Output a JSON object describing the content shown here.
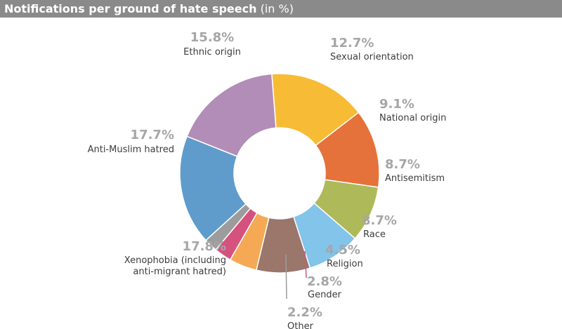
{
  "chart_data": {
    "type": "pie",
    "title": "Notifications per ground of hate speech",
    "subtitle": "(in %)",
    "slices": [
      {
        "label": "Ethnic origin",
        "value": 15.8,
        "value_label": "15.8%",
        "color": "#f8bb35"
      },
      {
        "label": "Sexual orientation",
        "value": 12.7,
        "value_label": "12.7%",
        "color": "#e5723a"
      },
      {
        "label": "National origin",
        "value": 9.1,
        "value_label": "9.1%",
        "color": "#aeb95a"
      },
      {
        "label": "Antisemitism",
        "value": 8.7,
        "value_label": "8.7%",
        "color": "#82c4ea"
      },
      {
        "label": "Race",
        "value": 8.7,
        "value_label": "8.7%",
        "color": "#9b766b"
      },
      {
        "label": "Religion",
        "value": 4.5,
        "value_label": "4.5%",
        "color": "#f6a955"
      },
      {
        "label": "Gender",
        "value": 2.8,
        "value_label": "2.8%",
        "color": "#d5527e"
      },
      {
        "label": "Other",
        "value": 2.2,
        "value_label": "2.2%",
        "color": "#9c9c9c"
      },
      {
        "label": "Xenophobia (including anti-migrant hatred)",
        "label_lines": [
          "Xenophobia (including",
          "anti-migrant hatred)"
        ],
        "value": 17.8,
        "value_label": "17.8%",
        "color": "#5f9ccb"
      },
      {
        "label": "Anti-Muslim hatred",
        "value": 17.7,
        "value_label": "17.7%",
        "color": "#b18db7"
      }
    ]
  }
}
